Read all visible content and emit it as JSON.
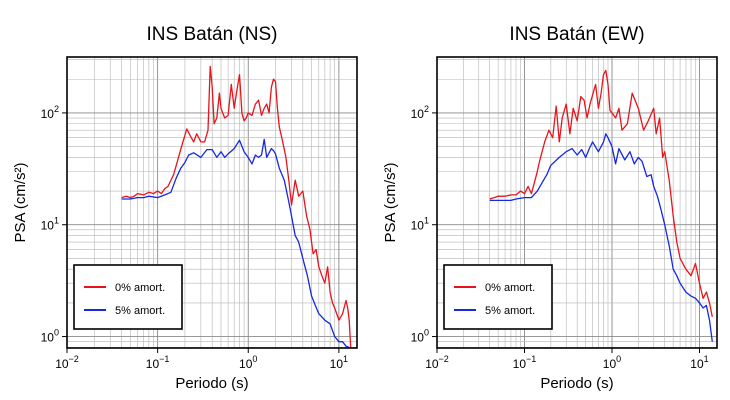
{
  "chart_data": [
    {
      "type": "line",
      "title": "INS Batán (NS)",
      "xlabel": "Periodo (s)",
      "ylabel": "PSA (cm/s²)",
      "x_scale": "log",
      "y_scale": "log",
      "xlim": [
        0.01,
        15.85
      ],
      "ylim": [
        0.79,
        316.2
      ],
      "x_ticks": [
        {
          "value": 0.01,
          "base": "10",
          "exp": "−2"
        },
        {
          "value": 0.1,
          "base": "10",
          "exp": "−1"
        },
        {
          "value": 1,
          "base": "10",
          "exp": "0"
        },
        {
          "value": 10,
          "base": "10",
          "exp": "1"
        }
      ],
      "y_ticks": [
        {
          "value": 1,
          "base": "10",
          "exp": "0"
        },
        {
          "value": 10,
          "base": "10",
          "exp": "1"
        },
        {
          "value": 100,
          "base": "10",
          "exp": "2"
        }
      ],
      "grid": true,
      "legend_position": "bottom-left",
      "series": [
        {
          "name": "0% amort.",
          "color": "#e8141c",
          "x": [
            0.04,
            0.045,
            0.05,
            0.055,
            0.06,
            0.07,
            0.08,
            0.09,
            0.1,
            0.11,
            0.12,
            0.13,
            0.15,
            0.17,
            0.19,
            0.21,
            0.23,
            0.25,
            0.27,
            0.3,
            0.33,
            0.36,
            0.38,
            0.4,
            0.42,
            0.45,
            0.48,
            0.5,
            0.55,
            0.6,
            0.65,
            0.7,
            0.75,
            0.8,
            0.85,
            0.9,
            0.95,
            1.0,
            1.1,
            1.2,
            1.3,
            1.4,
            1.5,
            1.6,
            1.7,
            1.8,
            1.9,
            2.0,
            2.1,
            2.2,
            2.4,
            2.6,
            2.8,
            3.0,
            3.3,
            3.6,
            4.0,
            4.4,
            4.8,
            5.2,
            5.6,
            6.0,
            6.5,
            7.0,
            7.5,
            8.0,
            8.5,
            9.0,
            10.0,
            11.0,
            12.0,
            12.5,
            13.0,
            13.5
          ],
          "y": [
            17.5,
            18.0,
            17.5,
            18.0,
            19.0,
            18.5,
            19.5,
            19.0,
            20.0,
            19.0,
            21.0,
            22.0,
            28.0,
            40.0,
            55.0,
            72.0,
            62.0,
            55.0,
            65.0,
            55.0,
            55.0,
            70.0,
            260.0,
            170.0,
            80.0,
            90.0,
            150.0,
            110.0,
            90.0,
            95.0,
            180.0,
            110.0,
            160.0,
            220.0,
            100.0,
            85.0,
            90.0,
            100.0,
            95.0,
            120.0,
            130.0,
            95.0,
            110.0,
            120.0,
            100.0,
            170.0,
            200.0,
            190.0,
            110.0,
            75.0,
            55.0,
            40.0,
            25.0,
            15.0,
            25.0,
            18.0,
            20.0,
            12.0,
            9.0,
            5.5,
            6.0,
            4.2,
            3.5,
            3.0,
            4.2,
            2.5,
            2.0,
            1.8,
            1.4,
            1.6,
            2.1,
            1.8,
            1.4,
            0.8
          ]
        },
        {
          "name": "5% amort.",
          "color": "#1428e0",
          "x": [
            0.04,
            0.05,
            0.06,
            0.07,
            0.08,
            0.1,
            0.12,
            0.14,
            0.16,
            0.18,
            0.2,
            0.22,
            0.25,
            0.3,
            0.35,
            0.4,
            0.45,
            0.5,
            0.55,
            0.6,
            0.7,
            0.8,
            0.9,
            1.0,
            1.1,
            1.2,
            1.3,
            1.4,
            1.5,
            1.6,
            1.7,
            1.8,
            1.9,
            2.0,
            2.2,
            2.5,
            2.8,
            3.0,
            3.3,
            3.6,
            4.0,
            4.5,
            5.0,
            5.5,
            6.0,
            6.5,
            7.0,
            8.0,
            9.0,
            10.0,
            11.0,
            12.0,
            13.0
          ],
          "y": [
            17.0,
            17.0,
            17.5,
            17.5,
            18.0,
            17.5,
            18.5,
            19.5,
            26.0,
            32.0,
            36.0,
            42.0,
            44.0,
            40.0,
            47.0,
            47.0,
            40.0,
            45.0,
            40.0,
            43.0,
            48.0,
            57.0,
            45.0,
            40.0,
            35.0,
            42.0,
            40.0,
            42.0,
            58.0,
            40.0,
            44.0,
            48.0,
            46.0,
            43.0,
            32.0,
            25.0,
            16.0,
            12.0,
            8.0,
            7.0,
            5.0,
            3.5,
            2.3,
            1.9,
            1.6,
            1.5,
            1.4,
            1.3,
            1.0,
            0.9,
            0.9,
            0.82,
            0.8
          ]
        }
      ]
    },
    {
      "type": "line",
      "title": "INS Batán (EW)",
      "xlabel": "Periodo (s)",
      "ylabel": "PSA (cm/s²)",
      "x_scale": "log",
      "y_scale": "log",
      "xlim": [
        0.01,
        15.85
      ],
      "ylim": [
        0.79,
        316.2
      ],
      "x_ticks": [
        {
          "value": 0.01,
          "base": "10",
          "exp": "−2"
        },
        {
          "value": 0.1,
          "base": "10",
          "exp": "−1"
        },
        {
          "value": 1,
          "base": "10",
          "exp": "0"
        },
        {
          "value": 10,
          "base": "10",
          "exp": "1"
        }
      ],
      "y_ticks": [
        {
          "value": 1,
          "base": "10",
          "exp": "0"
        },
        {
          "value": 10,
          "base": "10",
          "exp": "1"
        },
        {
          "value": 100,
          "base": "10",
          "exp": "2"
        }
      ],
      "grid": true,
      "legend_position": "bottom-left",
      "series": [
        {
          "name": "0% amort.",
          "color": "#e8141c",
          "x": [
            0.04,
            0.045,
            0.05,
            0.06,
            0.07,
            0.08,
            0.09,
            0.1,
            0.11,
            0.12,
            0.13,
            0.14,
            0.15,
            0.17,
            0.19,
            0.21,
            0.23,
            0.25,
            0.27,
            0.3,
            0.33,
            0.36,
            0.4,
            0.44,
            0.48,
            0.52,
            0.56,
            0.6,
            0.65,
            0.7,
            0.75,
            0.8,
            0.85,
            0.9,
            0.95,
            1.0,
            1.1,
            1.2,
            1.3,
            1.5,
            1.7,
            2.0,
            2.3,
            2.6,
            3.0,
            3.2,
            3.5,
            3.8,
            4.0,
            4.5,
            5.0,
            5.5,
            6.0,
            7.0,
            8.0,
            9.0,
            10.0,
            11.0,
            12.0,
            13.0,
            14.0
          ],
          "y": [
            17.0,
            17.5,
            18.0,
            18.0,
            18.5,
            18.5,
            20.0,
            19.0,
            22.0,
            19.0,
            24.0,
            30.0,
            38.0,
            55.0,
            70.0,
            60.0,
            115.0,
            55.0,
            90.0,
            120.0,
            65.0,
            110.0,
            85.0,
            140.0,
            130.0,
            90.0,
            120.0,
            145.0,
            180.0,
            110.0,
            150.0,
            220.0,
            240.0,
            180.0,
            105.0,
            100.0,
            90.0,
            110.0,
            70.0,
            80.0,
            150.0,
            110.0,
            70.0,
            85.0,
            110.0,
            65.0,
            90.0,
            40.0,
            45.0,
            25.0,
            12.0,
            7.0,
            5.0,
            4.0,
            3.5,
            4.5,
            3.0,
            2.2,
            2.5,
            2.0,
            1.5
          ]
        },
        {
          "name": "5% amort.",
          "color": "#1428e0",
          "x": [
            0.04,
            0.05,
            0.06,
            0.07,
            0.08,
            0.1,
            0.12,
            0.14,
            0.16,
            0.18,
            0.2,
            0.25,
            0.3,
            0.35,
            0.4,
            0.45,
            0.5,
            0.55,
            0.6,
            0.7,
            0.8,
            0.85,
            0.9,
            1.0,
            1.1,
            1.2,
            1.4,
            1.6,
            1.8,
            2.0,
            2.2,
            2.5,
            2.8,
            3.0,
            3.3,
            3.6,
            4.0,
            4.5,
            5.0,
            5.5,
            6.0,
            7.0,
            8.0,
            9.0,
            10.0,
            11.0,
            12.0,
            13.0,
            14.0
          ],
          "y": [
            16.5,
            16.5,
            16.5,
            16.5,
            17.0,
            17.5,
            17.5,
            20.0,
            24.0,
            28.0,
            34.0,
            40.0,
            45.0,
            48.0,
            42.0,
            47.0,
            40.0,
            48.0,
            55.0,
            45.0,
            55.0,
            65.0,
            60.0,
            50.0,
            35.0,
            48.0,
            38.0,
            45.0,
            35.0,
            40.0,
            37.0,
            27.0,
            28.0,
            22.0,
            18.0,
            14.0,
            10.0,
            6.5,
            4.0,
            3.5,
            3.0,
            2.5,
            2.3,
            2.2,
            2.0,
            1.8,
            1.9,
            1.4,
            0.9
          ]
        }
      ]
    }
  ]
}
